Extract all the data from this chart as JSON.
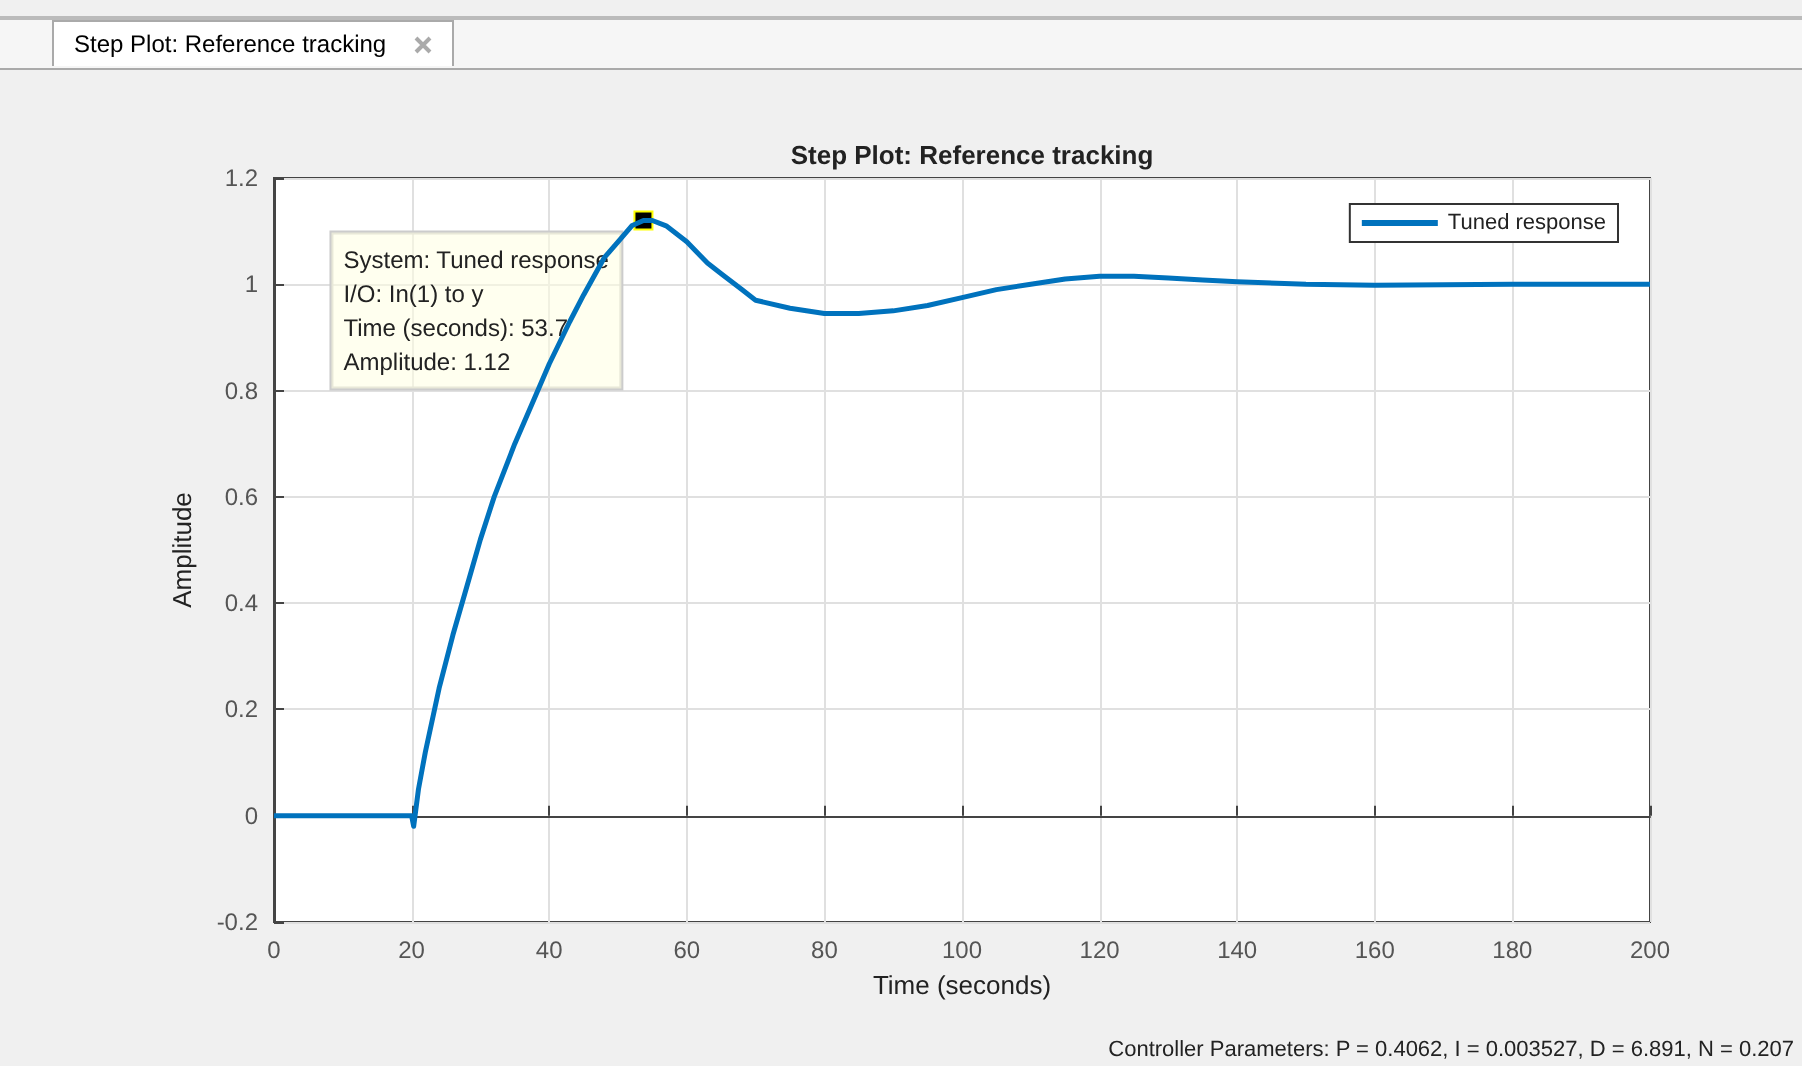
{
  "chart_data": {
    "type": "line",
    "title": "Step Plot: Reference tracking",
    "xlabel": "Time (seconds)",
    "ylabel": "Amplitude",
    "annotations": [
      "Step Plot: Reference tracking",
      {
        "text": "System: Tuned response\nI/O: In(1) to y\nTime (seconds): 53.7\nAmplitude: 1.12",
        "x": 53.7,
        "y": 1.12
      },
      "Controller Parameters: P = 0.4062, I = 0.003527, D = 6.891, N = 0.207"
    ],
    "series": [
      {
        "name": "Tuned response",
        "color": "#0072bd",
        "x": [
          0,
          10,
          20,
          20.3,
          21,
          22,
          24,
          26,
          28,
          30,
          32,
          35,
          38,
          40,
          43,
          45,
          48,
          50,
          52,
          53.7,
          55,
          57,
          60,
          63,
          65,
          68,
          70,
          75,
          80,
          85,
          90,
          95,
          100,
          105,
          110,
          115,
          120,
          125,
          130,
          135,
          140,
          150,
          160,
          170,
          180,
          190,
          200
        ],
        "values": [
          0,
          0,
          0,
          -0.02,
          0.05,
          0.12,
          0.24,
          0.34,
          0.43,
          0.52,
          0.6,
          0.7,
          0.79,
          0.85,
          0.93,
          0.98,
          1.05,
          1.08,
          1.11,
          1.12,
          1.12,
          1.11,
          1.08,
          1.04,
          1.02,
          0.99,
          0.97,
          0.955,
          0.945,
          0.945,
          0.95,
          0.96,
          0.975,
          0.99,
          1.0,
          1.01,
          1.015,
          1.015,
          1.012,
          1.008,
          1.005,
          1.0,
          0.998,
          0.999,
          1.0,
          1.0,
          1.0
        ]
      }
    ],
    "xlim": [
      0,
      200
    ],
    "xticks": [
      0,
      20,
      40,
      60,
      80,
      100,
      120,
      140,
      160,
      180,
      200
    ],
    "ylim": [
      -0.2,
      1.2
    ],
    "yticks": [
      -0.2,
      0,
      0.2,
      0.4,
      0.6,
      0.8,
      1,
      1.2
    ],
    "grid": true,
    "legend": "top right",
    "marker": "none",
    "line_style": "solid"
  }
}
